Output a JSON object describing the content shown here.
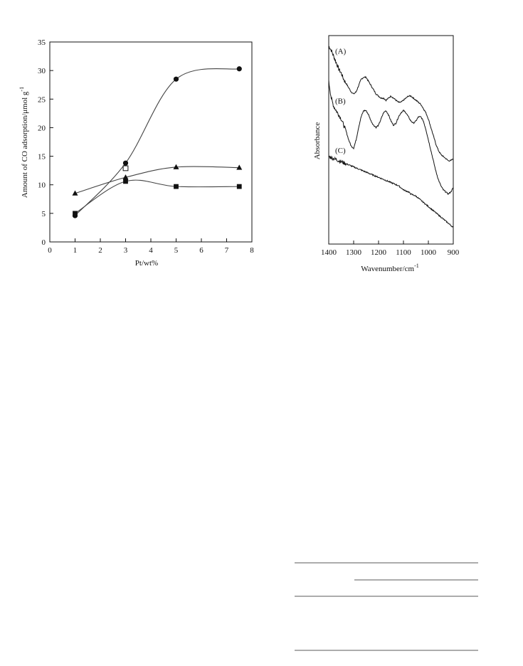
{
  "chart_data": [
    {
      "type": "scatter",
      "xlabel": "Pt/wt%",
      "ylabel": "Amount of CO adsorption/μmol g",
      "ylabel_sup": "-1",
      "xlim": [
        0,
        8
      ],
      "ylim": [
        0,
        35
      ],
      "xticks": [
        "0",
        "1",
        "2",
        "3",
        "4",
        "5",
        "6",
        "7",
        "8"
      ],
      "yticks": [
        "0",
        "5",
        "10",
        "15",
        "20",
        "25",
        "30",
        "35"
      ],
      "grid": false,
      "series": [
        {
          "marker": "filled-circle",
          "x": [
            1,
            3,
            5,
            7.5
          ],
          "y": [
            4.6,
            13.8,
            28.5,
            30.3
          ],
          "curve": "smooth"
        },
        {
          "marker": "filled-triangle",
          "x": [
            1,
            3,
            5,
            7.5
          ],
          "y": [
            8.5,
            11.3,
            13.1,
            13.0
          ],
          "curve": "smooth"
        },
        {
          "marker": "filled-square",
          "x": [
            1,
            3,
            5,
            7.5
          ],
          "y": [
            5.0,
            10.6,
            9.7,
            9.7
          ],
          "curve": "smooth"
        },
        {
          "marker": "open-square",
          "x": [
            3
          ],
          "y": [
            12.9
          ],
          "curve": "none"
        }
      ]
    },
    {
      "type": "line",
      "xlabel": "Wavenumber/cm",
      "xlabel_sup": "-1",
      "ylabel": "Absorbance",
      "xlim": [
        1400,
        900
      ],
      "xticks": [
        "1400",
        "1300",
        "1200",
        "1100",
        "1000",
        "900"
      ],
      "y_ticks_shown": false,
      "grid": false,
      "series": [
        {
          "name": "(A)",
          "x": [
            1400,
            1390,
            1380,
            1370,
            1360,
            1350,
            1340,
            1330,
            1320,
            1310,
            1300,
            1290,
            1280,
            1270,
            1260,
            1250,
            1240,
            1230,
            1220,
            1210,
            1200,
            1190,
            1180,
            1170,
            1160,
            1150,
            1140,
            1130,
            1120,
            1110,
            1100,
            1090,
            1080,
            1070,
            1060,
            1050,
            1040,
            1030,
            1020,
            1010,
            1000,
            990,
            980,
            970,
            960,
            950,
            940,
            930,
            920,
            910,
            900
          ],
          "y": [
            0.95,
            0.93,
            0.9,
            0.87,
            0.84,
            0.82,
            0.79,
            0.77,
            0.75,
            0.73,
            0.72,
            0.73,
            0.76,
            0.79,
            0.8,
            0.8,
            0.78,
            0.76,
            0.74,
            0.72,
            0.71,
            0.7,
            0.7,
            0.69,
            0.7,
            0.71,
            0.7,
            0.69,
            0.68,
            0.68,
            0.69,
            0.7,
            0.71,
            0.71,
            0.7,
            0.69,
            0.68,
            0.67,
            0.65,
            0.63,
            0.6,
            0.56,
            0.52,
            0.48,
            0.45,
            0.43,
            0.42,
            0.41,
            0.4,
            0.4,
            0.41
          ]
        },
        {
          "name": "(B)",
          "x": [
            1400,
            1390,
            1380,
            1370,
            1360,
            1350,
            1340,
            1330,
            1320,
            1310,
            1300,
            1290,
            1280,
            1270,
            1260,
            1250,
            1240,
            1230,
            1220,
            1210,
            1200,
            1190,
            1180,
            1170,
            1160,
            1150,
            1140,
            1130,
            1120,
            1110,
            1100,
            1090,
            1080,
            1070,
            1060,
            1050,
            1040,
            1030,
            1020,
            1010,
            1000,
            990,
            980,
            970,
            960,
            950,
            940,
            930,
            920,
            910,
            900
          ],
          "y": [
            0.78,
            0.7,
            0.66,
            0.64,
            0.62,
            0.6,
            0.57,
            0.54,
            0.5,
            0.47,
            0.46,
            0.5,
            0.56,
            0.61,
            0.64,
            0.64,
            0.62,
            0.59,
            0.57,
            0.56,
            0.57,
            0.6,
            0.63,
            0.64,
            0.62,
            0.59,
            0.57,
            0.58,
            0.61,
            0.63,
            0.64,
            0.63,
            0.61,
            0.59,
            0.58,
            0.59,
            0.61,
            0.61,
            0.59,
            0.55,
            0.5,
            0.45,
            0.4,
            0.35,
            0.31,
            0.28,
            0.26,
            0.25,
            0.24,
            0.25,
            0.27
          ]
        },
        {
          "name": "(C)",
          "x": [
            1400,
            1390,
            1380,
            1370,
            1360,
            1350,
            1340,
            1330,
            1320,
            1310,
            1300,
            1290,
            1280,
            1270,
            1260,
            1250,
            1240,
            1230,
            1220,
            1210,
            1200,
            1190,
            1180,
            1170,
            1160,
            1150,
            1140,
            1130,
            1120,
            1110,
            1100,
            1090,
            1080,
            1070,
            1060,
            1050,
            1040,
            1030,
            1020,
            1010,
            1000,
            990,
            980,
            970,
            960,
            950,
            940,
            930,
            920,
            910,
            900
          ],
          "y": [
            0.42,
            0.415,
            0.41,
            0.405,
            0.4,
            0.395,
            0.39,
            0.385,
            0.38,
            0.375,
            0.37,
            0.365,
            0.36,
            0.355,
            0.35,
            0.345,
            0.34,
            0.335,
            0.33,
            0.325,
            0.32,
            0.315,
            0.31,
            0.305,
            0.3,
            0.295,
            0.29,
            0.285,
            0.28,
            0.27,
            0.26,
            0.255,
            0.25,
            0.24,
            0.235,
            0.23,
            0.22,
            0.21,
            0.2,
            0.19,
            0.18,
            0.17,
            0.16,
            0.15,
            0.14,
            0.13,
            0.12,
            0.11,
            0.1,
            0.09,
            0.08
          ]
        }
      ]
    }
  ],
  "table_rules": {
    "count": 4
  }
}
